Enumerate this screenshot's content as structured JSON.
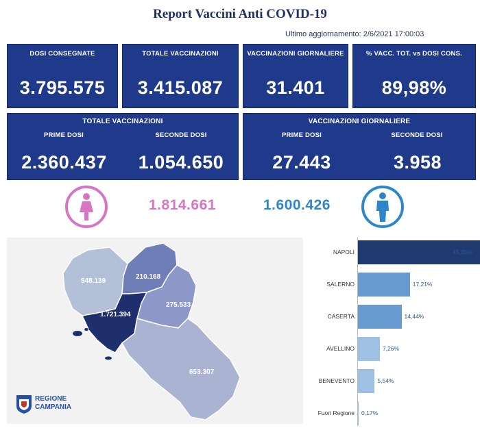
{
  "header": {
    "title": "Report Vaccini Anti COVID-19",
    "updated": "Ultimo aggiornamento: 2/6/2021 17:00:03"
  },
  "kpis": [
    {
      "label": "DOSI  CONSEGNATE",
      "value": "3.795.575"
    },
    {
      "label": "TOTALE VACCINAZIONI",
      "value": "3.415.087"
    },
    {
      "label": "VACCINAZIONI GIORNALIERE",
      "value": "31.401"
    },
    {
      "label": "% VACC. TOT. vs DOSI CONS.",
      "value": "89,98%"
    }
  ],
  "totale_panel": {
    "title": "TOTALE VACCINAZIONI",
    "prime_label": "PRIME DOSI",
    "prime_value": "2.360.437",
    "seconde_label": "SECONDE DOSI",
    "seconde_value": "1.054.650"
  },
  "giornaliere_panel": {
    "title": "VACCINAZIONI GIORNALIERE",
    "prime_label": "PRIME DOSI",
    "prime_value": "27.443",
    "seconde_label": "SECONDE DOSI",
    "seconde_value": "3.958"
  },
  "gender": {
    "female_icon": "female-person-icon",
    "female_value": "1.814.661",
    "male_icon": "male-person-icon",
    "male_value": "1.600.426",
    "female_color": "#d874c4",
    "male_color": "#2c86c9"
  },
  "map": {
    "caserta": "548.139",
    "benevento": "210.168",
    "avellino": "275.533",
    "napoli": "1.721.394",
    "salerno": "653.307",
    "logo_line1": "REGIONE",
    "logo_line2": "CAMPANIA"
  },
  "chart_data": {
    "type": "bar",
    "orientation": "horizontal",
    "categories": [
      "NAPOLI",
      "SALERNO",
      "CASERTA",
      "AVELLINO",
      "BENEVENTO",
      "Fuori Regione"
    ],
    "values": [
      45.35,
      17.21,
      14.44,
      7.26,
      5.54,
      0.17
    ],
    "labels": [
      "45,35%",
      "17,21%",
      "14,44%",
      "7,26%",
      "5,54%",
      "0,17%"
    ],
    "colors": [
      "#1f3a6e",
      "#6a9bd0",
      "#6a9bd0",
      "#9ec0e3",
      "#9ec0e3",
      "#9ec0e3"
    ],
    "xlim": [
      0,
      50
    ]
  },
  "colors": {
    "card_bg": "#1f3a8a",
    "title": "#1f3264"
  }
}
